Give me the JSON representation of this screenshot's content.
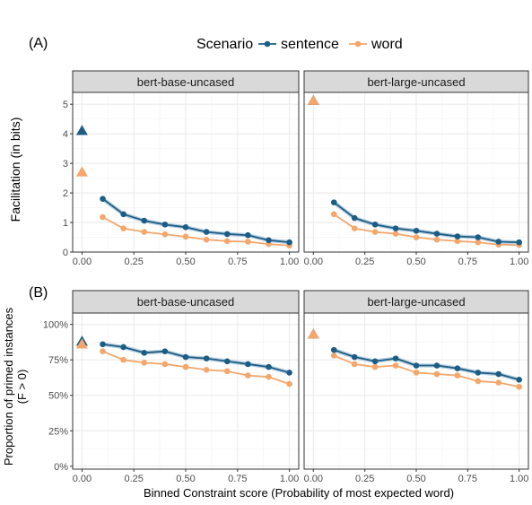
{
  "legend": {
    "title": "Scenario",
    "items": [
      {
        "label": "sentence",
        "color": "#1c5d85"
      },
      {
        "label": "word",
        "color": "#f4a66b"
      }
    ]
  },
  "panel_labels": [
    "(A)",
    "(B)"
  ],
  "xlabel": "Binned Constraint score (Probability of most expected word)",
  "chart_data": [
    {
      "type": "line",
      "panel": "(A)",
      "ylabel": "Facilitation (in bits)",
      "ylim": [
        0,
        5.4
      ],
      "yticks": [
        0,
        1,
        2,
        3,
        4,
        5
      ],
      "ytick_labels": [
        "0",
        "1",
        "2",
        "3",
        "4",
        "5"
      ],
      "xlim": [
        0,
        1
      ],
      "xticks": [
        0,
        0.25,
        0.5,
        0.75,
        1
      ],
      "xtick_labels": [
        "0.00",
        "0.25",
        "0.50",
        "0.75",
        "1.00"
      ],
      "grid": true,
      "facets": [
        {
          "title": "bert-base-uncased",
          "zero_markers": [
            {
              "series": "sentence",
              "x": 0,
              "y": 4.1
            },
            {
              "series": "word",
              "x": 0,
              "y": 2.7
            }
          ],
          "series": [
            {
              "name": "sentence",
              "x": [
                0.1,
                0.2,
                0.3,
                0.4,
                0.5,
                0.6,
                0.7,
                0.8,
                0.9,
                1.0
              ],
              "y": [
                1.8,
                1.28,
                1.06,
                0.93,
                0.84,
                0.68,
                0.61,
                0.57,
                0.4,
                0.33
              ]
            },
            {
              "name": "word",
              "x": [
                0.1,
                0.2,
                0.3,
                0.4,
                0.5,
                0.6,
                0.7,
                0.8,
                0.9,
                1.0
              ],
              "y": [
                1.18,
                0.8,
                0.68,
                0.6,
                0.52,
                0.42,
                0.37,
                0.35,
                0.27,
                0.22
              ]
            }
          ]
        },
        {
          "title": "bert-large-uncased",
          "zero_markers": [
            {
              "series": "sentence",
              "x": 0,
              "y": 5.12
            },
            {
              "series": "word",
              "x": 0,
              "y": 5.12
            }
          ],
          "series": [
            {
              "name": "sentence",
              "x": [
                0.1,
                0.2,
                0.3,
                0.4,
                0.5,
                0.6,
                0.7,
                0.8,
                0.9,
                1.0
              ],
              "y": [
                1.68,
                1.15,
                0.93,
                0.8,
                0.72,
                0.62,
                0.53,
                0.5,
                0.35,
                0.33
              ]
            },
            {
              "name": "word",
              "x": [
                0.1,
                0.2,
                0.3,
                0.4,
                0.5,
                0.6,
                0.7,
                0.8,
                0.9,
                1.0
              ],
              "y": [
                1.28,
                0.8,
                0.68,
                0.62,
                0.5,
                0.42,
                0.37,
                0.33,
                0.25,
                0.24
              ]
            }
          ]
        }
      ]
    },
    {
      "type": "line",
      "panel": "(B)",
      "ylabel": "Proportion of primed instances",
      "ylabel2": "(F > 0)",
      "ylim": [
        -0.02,
        1.08
      ],
      "yticks": [
        0,
        0.25,
        0.5,
        0.75,
        1.0
      ],
      "ytick_labels": [
        "0%",
        "25%",
        "50%",
        "75%",
        "100%"
      ],
      "xlim": [
        0,
        1
      ],
      "xticks": [
        0,
        0.25,
        0.5,
        0.75,
        1
      ],
      "xtick_labels": [
        "0.00",
        "0.25",
        "0.50",
        "0.75",
        "1.00"
      ],
      "grid": true,
      "facets": [
        {
          "title": "bert-base-uncased",
          "zero_markers": [
            {
              "series": "sentence",
              "x": 0,
              "y": 0.88
            },
            {
              "series": "word",
              "x": 0,
              "y": 0.86
            }
          ],
          "series": [
            {
              "name": "sentence",
              "x": [
                0.1,
                0.2,
                0.3,
                0.4,
                0.5,
                0.6,
                0.7,
                0.8,
                0.9,
                1.0
              ],
              "y": [
                0.86,
                0.84,
                0.8,
                0.81,
                0.77,
                0.76,
                0.74,
                0.72,
                0.7,
                0.66
              ]
            },
            {
              "name": "word",
              "x": [
                0.1,
                0.2,
                0.3,
                0.4,
                0.5,
                0.6,
                0.7,
                0.8,
                0.9,
                1.0
              ],
              "y": [
                0.81,
                0.75,
                0.73,
                0.72,
                0.7,
                0.68,
                0.67,
                0.64,
                0.63,
                0.58
              ]
            }
          ]
        },
        {
          "title": "bert-large-uncased",
          "zero_markers": [
            {
              "series": "sentence",
              "x": 0,
              "y": 0.93
            },
            {
              "series": "word",
              "x": 0,
              "y": 0.93
            }
          ],
          "series": [
            {
              "name": "sentence",
              "x": [
                0.1,
                0.2,
                0.3,
                0.4,
                0.5,
                0.6,
                0.7,
                0.8,
                0.9,
                1.0
              ],
              "y": [
                0.82,
                0.77,
                0.74,
                0.76,
                0.71,
                0.71,
                0.69,
                0.66,
                0.65,
                0.61
              ]
            },
            {
              "name": "word",
              "x": [
                0.1,
                0.2,
                0.3,
                0.4,
                0.5,
                0.6,
                0.7,
                0.8,
                0.9,
                1.0
              ],
              "y": [
                0.78,
                0.72,
                0.7,
                0.71,
                0.66,
                0.65,
                0.64,
                0.6,
                0.59,
                0.56
              ]
            }
          ]
        }
      ]
    }
  ]
}
